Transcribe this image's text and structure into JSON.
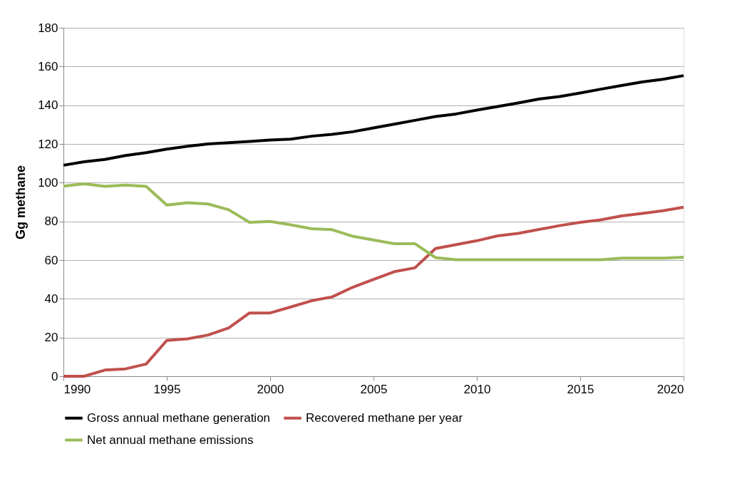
{
  "chart_data": {
    "type": "line",
    "ylabel": "Gg methane",
    "x": [
      1990,
      1991,
      1992,
      1993,
      1994,
      1995,
      1996,
      1997,
      1998,
      1999,
      2000,
      2001,
      2002,
      2003,
      2004,
      2005,
      2006,
      2007,
      2008,
      2009,
      2010,
      2011,
      2012,
      2013,
      2014,
      2015,
      2016,
      2017,
      2018,
      2019,
      2020
    ],
    "series": [
      {
        "name": "Gross annual methane generation",
        "color": "#000000",
        "values": [
          109,
          110.8,
          112,
          114,
          115.5,
          117.3,
          118.8,
          120,
          120.6,
          121.3,
          122,
          122.5,
          124,
          125,
          126.3,
          128.3,
          130.2,
          132.2,
          134.2,
          135.5,
          137.5,
          139.3,
          141.2,
          143.2,
          144.5,
          146.3,
          148.3,
          150.2,
          152,
          153.4,
          155.3
        ]
      },
      {
        "name": "Recovered methane per year",
        "color": "#c0504d",
        "values": [
          0,
          0,
          3.2,
          3.8,
          6.3,
          18.5,
          19.3,
          21.3,
          25,
          32.7,
          32.7,
          35.8,
          39,
          41,
          46,
          50,
          54,
          56,
          66,
          68,
          70,
          72.5,
          73.8,
          75.8,
          77.8,
          79.5,
          80.8,
          82.8,
          84.1,
          85.5,
          87.3
        ]
      },
      {
        "name": "Net annual methane emissions",
        "color": "#9bbb59",
        "values": [
          98.2,
          99.4,
          98.1,
          98.7,
          98.1,
          88.4,
          89.6,
          89,
          86,
          79.5,
          80,
          78.2,
          76.2,
          75.7,
          72.3,
          70.4,
          68.5,
          68.5,
          61.3,
          60.2,
          60.2,
          60.2,
          60.2,
          60.2,
          60.2,
          60.2,
          60.2,
          61,
          61,
          61,
          61.5
        ]
      }
    ],
    "xlim": [
      1990,
      2020
    ],
    "xticks": [
      1990,
      1995,
      2000,
      2005,
      2010,
      2015,
      2020
    ],
    "ylim": [
      0,
      180
    ],
    "yticks": [
      0,
      20,
      40,
      60,
      80,
      100,
      120,
      140,
      160,
      180
    ],
    "grid": "y",
    "legend": "bottom",
    "marker": "none",
    "line_style": "solid"
  }
}
